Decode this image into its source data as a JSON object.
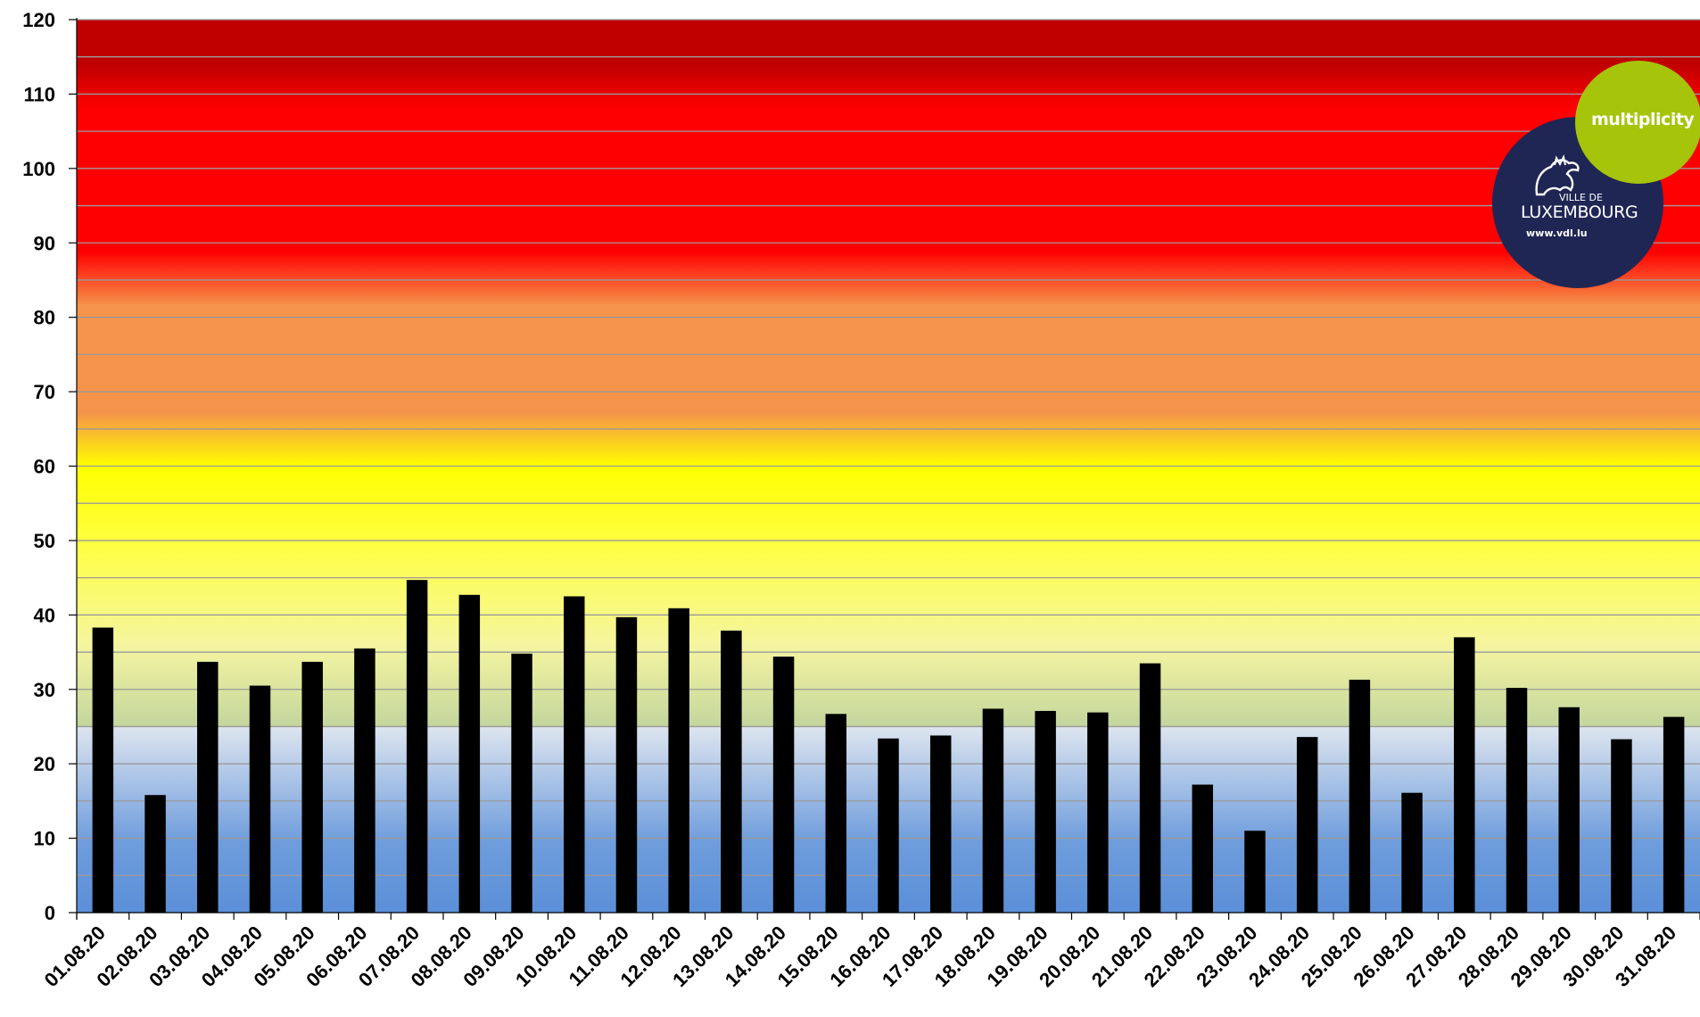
{
  "chart_data": {
    "type": "bar",
    "title": "",
    "xlabel": "",
    "ylabel": "",
    "ylim": [
      0,
      120
    ],
    "yticks": [
      0,
      10,
      20,
      30,
      40,
      50,
      60,
      70,
      80,
      90,
      100,
      110,
      120
    ],
    "gridlines_every": 5,
    "grid": true,
    "bar_color": "#000000",
    "categories": [
      "01.08.20",
      "02.08.20",
      "03.08.20",
      "04.08.20",
      "05.08.20",
      "06.08.20",
      "07.08.20",
      "08.08.20",
      "09.08.20",
      "10.08.20",
      "11.08.20",
      "12.08.20",
      "13.08.20",
      "14.08.20",
      "15.08.20",
      "16.08.20",
      "17.08.20",
      "18.08.20",
      "19.08.20",
      "20.08.20",
      "21.08.20",
      "22.08.20",
      "23.08.20",
      "24.08.20",
      "25.08.20",
      "26.08.20",
      "27.08.20",
      "28.08.20",
      "29.08.20",
      "30.08.20",
      "31.08.20"
    ],
    "values": [
      38.3,
      15.8,
      33.7,
      30.5,
      33.7,
      35.5,
      44.7,
      42.7,
      34.8,
      42.5,
      39.7,
      40.9,
      37.9,
      34.4,
      26.7,
      23.4,
      23.8,
      27.4,
      27.1,
      26.9,
      33.5,
      17.2,
      11.0,
      23.6,
      31.3,
      16.1,
      37.0,
      30.2,
      27.6,
      23.3,
      26.3
    ],
    "background_bands": [
      {
        "from": 0,
        "to": 25,
        "colors": [
          "#5b8fd8",
          "#dce4ef"
        ]
      },
      {
        "from": 25,
        "to": 50,
        "colors": [
          "#c4d69e",
          "#ffff40"
        ]
      },
      {
        "from": 50,
        "to": 75,
        "colors": [
          "#ffff00",
          "#f5934a"
        ]
      },
      {
        "from": 75,
        "to": 120,
        "colors": [
          "#f5934a",
          "#ff0000",
          "#c00000"
        ]
      }
    ]
  },
  "logos": {
    "multiplicity": {
      "text": "multiplicity",
      "color": "#a6c40a"
    },
    "vdl": {
      "line1": "VILLE DE",
      "line2": "LUXEMBOURG",
      "url": "www.vdl.lu",
      "color": "#1f2654"
    }
  }
}
